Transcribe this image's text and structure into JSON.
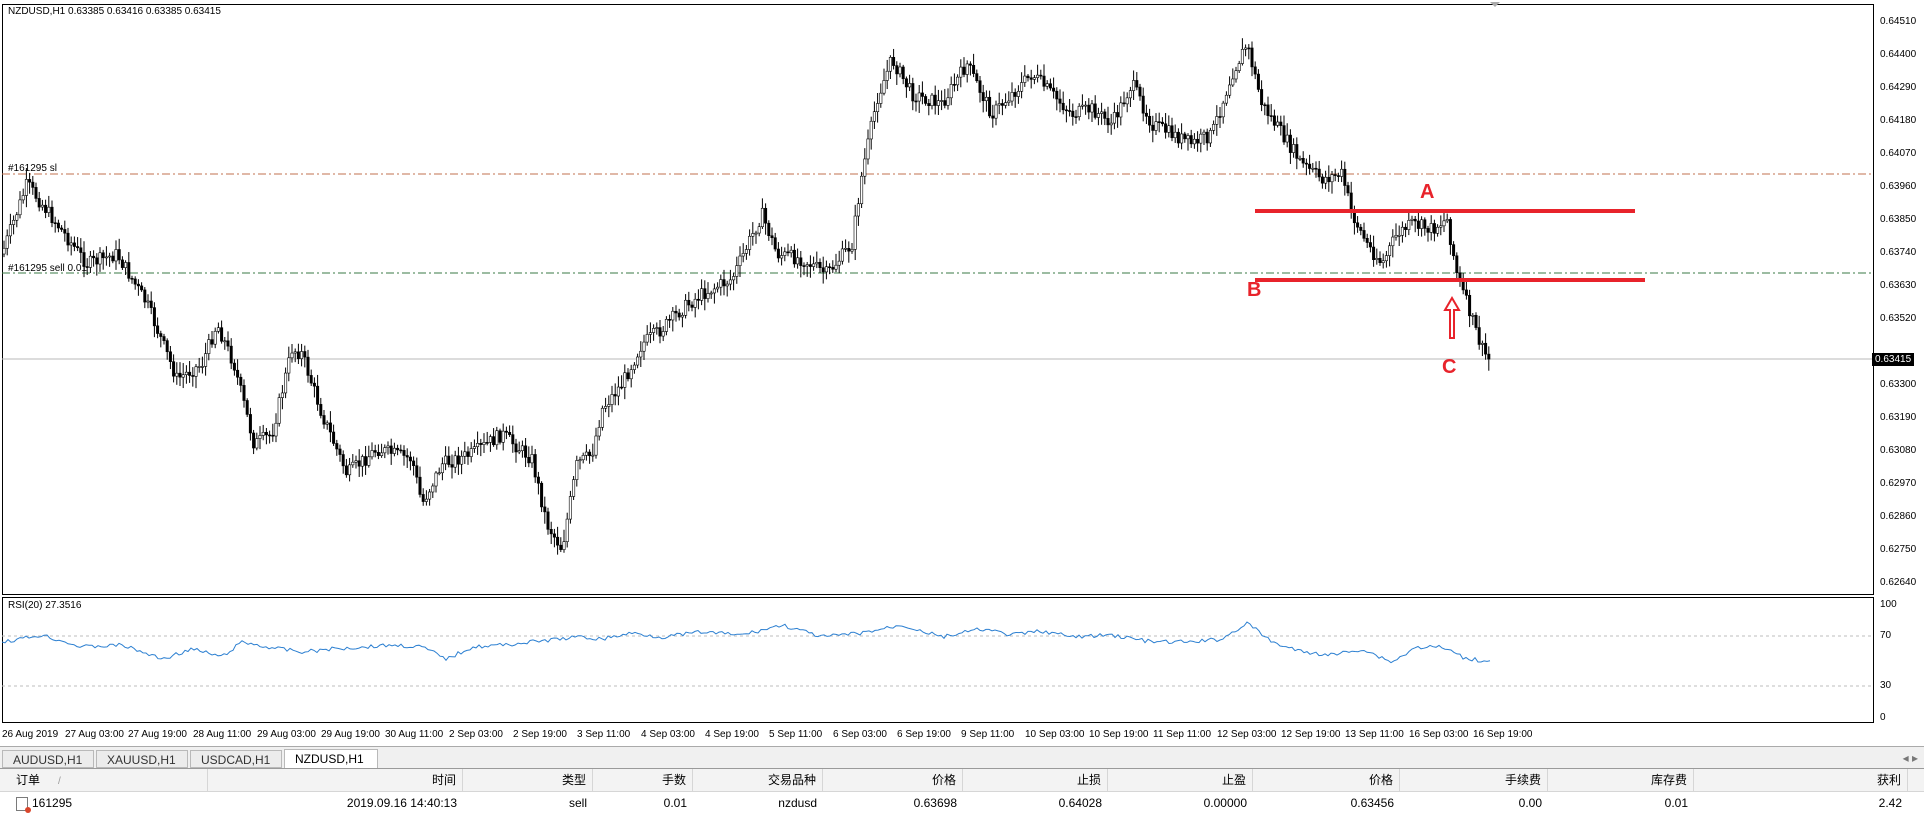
{
  "chart": {
    "header": "NZDUSD,H1  0.63385 0.63416 0.63385 0.63415",
    "order_sl_label": "#161295 sl",
    "order_sell_label": "#161295 sell 0.01",
    "current_price": "0.63415",
    "y_ticks": [
      "0.64510",
      "0.64400",
      "0.64290",
      "0.64180",
      "0.64070",
      "0.63960",
      "0.63850",
      "0.63740",
      "0.63630",
      "0.63520",
      "0.63300",
      "0.63190",
      "0.63080",
      "0.62970",
      "0.62860",
      "0.62750",
      "0.62640"
    ],
    "x_ticks": [
      "26 Aug 2019",
      "27 Aug 03:00",
      "27 Aug 19:00",
      "28 Aug 11:00",
      "29 Aug 03:00",
      "29 Aug 19:00",
      "30 Aug 11:00",
      "2 Sep 03:00",
      "2 Sep 19:00",
      "3 Sep 11:00",
      "4 Sep 03:00",
      "4 Sep 19:00",
      "5 Sep 11:00",
      "6 Sep 03:00",
      "6 Sep 19:00",
      "9 Sep 11:00",
      "10 Sep 03:00",
      "10 Sep 19:00",
      "11 Sep 11:00",
      "12 Sep 03:00",
      "12 Sep 19:00",
      "13 Sep 11:00",
      "16 Sep 03:00",
      "16 Sep 19:00"
    ],
    "annotations": {
      "a": "A",
      "b": "B",
      "c": "C"
    },
    "colors": {
      "annotation": "#e8232b",
      "rsi_line": "#2b7fd1",
      "candle": "#000000",
      "sl_line": "#c0714f",
      "sell_line": "#3a7a45"
    }
  },
  "rsi": {
    "label": "RSI(20) 27.3516",
    "ticks": [
      "100",
      "70",
      "30",
      "0"
    ]
  },
  "tabs": [
    "AUDUSD,H1",
    "XAUUSD,H1",
    "USDCAD,H1",
    "NZDUSD,H1"
  ],
  "active_tab": "NZDUSD,H1",
  "terminal": {
    "headers": [
      "订单",
      "时间",
      "类型",
      "手数",
      "交易品种",
      "价格",
      "止损",
      "止盈",
      "价格",
      "手续费",
      "库存费",
      "获利"
    ],
    "row": {
      "order": "161295",
      "time": "2019.09.16 14:40:13",
      "type": "sell",
      "lots": "0.01",
      "symbol": "nzdusd",
      "price_open": "0.63698",
      "sl": "0.64028",
      "tp": "0.00000",
      "price_current": "0.63456",
      "commission": "0.00",
      "swap": "0.01",
      "profit": "2.42"
    }
  }
}
